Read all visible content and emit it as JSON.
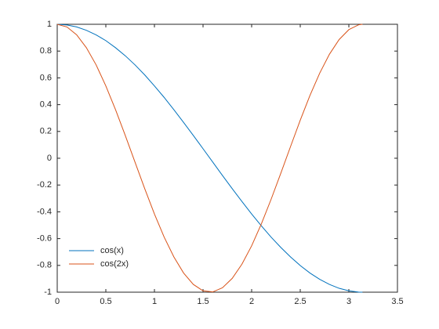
{
  "chart_data": {
    "type": "line",
    "x": [
      0,
      0.1,
      0.2,
      0.3,
      0.4,
      0.5,
      0.6,
      0.7,
      0.8,
      0.9,
      1.0,
      1.1,
      1.2,
      1.3,
      1.4,
      1.5,
      1.6,
      1.7,
      1.8,
      1.9,
      2.0,
      2.1,
      2.2,
      2.3,
      2.4,
      2.5,
      2.6,
      2.7,
      2.8,
      2.9,
      3.0,
      3.1,
      3.14
    ],
    "series": [
      {
        "name": "cos(x)",
        "color": "#0072bd",
        "values": [
          1,
          0.995,
          0.98,
          0.955,
          0.921,
          0.878,
          0.825,
          0.765,
          0.697,
          0.622,
          0.54,
          0.454,
          0.362,
          0.267,
          0.17,
          0.071,
          -0.029,
          -0.129,
          -0.227,
          -0.323,
          -0.416,
          -0.505,
          -0.589,
          -0.666,
          -0.737,
          -0.801,
          -0.857,
          -0.904,
          -0.942,
          -0.971,
          -0.99,
          -0.999,
          -1.0
        ]
      },
      {
        "name": "cos(2x)",
        "color": "#d95319",
        "values": [
          1,
          0.98,
          0.921,
          0.825,
          0.697,
          0.54,
          0.362,
          0.17,
          -0.029,
          -0.227,
          -0.416,
          -0.589,
          -0.737,
          -0.857,
          -0.942,
          -0.99,
          -0.998,
          -0.967,
          -0.897,
          -0.791,
          -0.654,
          -0.49,
          -0.307,
          -0.112,
          0.087,
          0.284,
          0.469,
          0.635,
          0.776,
          0.886,
          0.96,
          0.996,
          1.0
        ]
      }
    ],
    "xlim": [
      0,
      3.5
    ],
    "xticks": [
      0,
      0.5,
      1,
      1.5,
      2,
      2.5,
      3,
      3.5
    ],
    "ylim": [
      -1,
      1
    ],
    "yticks": [
      -1,
      -0.8,
      -0.6,
      -0.4,
      -0.2,
      0,
      0.2,
      0.4,
      0.6,
      0.8,
      1
    ],
    "grid": false,
    "legend": "lower left"
  }
}
